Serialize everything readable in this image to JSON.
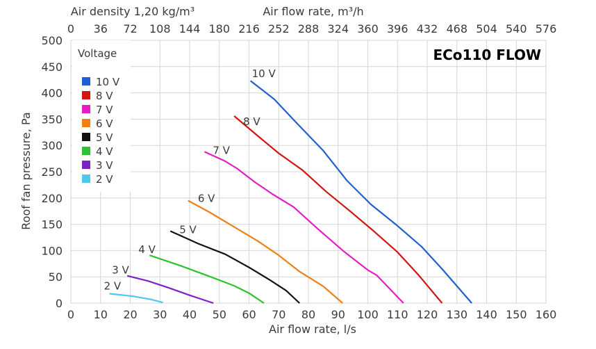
{
  "chart_data": {
    "type": "line",
    "title": "ECo110 FLOW",
    "xlabel": "Air flow rate, l/s",
    "ylabel": "Roof fan pressure, Pa",
    "x2label": "Air flow rate, m³/h",
    "x3label": "Air density 1,20 kg/m³",
    "xlim": [
      0,
      160
    ],
    "ylim": [
      0,
      500
    ],
    "xticks": [
      0,
      10,
      20,
      30,
      40,
      50,
      60,
      70,
      80,
      90,
      100,
      110,
      120,
      130,
      140,
      150,
      160
    ],
    "yticks": [
      0,
      50,
      100,
      150,
      200,
      250,
      300,
      350,
      400,
      450,
      500
    ],
    "x2ticks": [
      0,
      36,
      72,
      108,
      144,
      180,
      216,
      252,
      288,
      324,
      360,
      396,
      432,
      468,
      504,
      540,
      576
    ],
    "grid": true,
    "legend": {
      "title": "Voltage",
      "position": "top-left"
    },
    "series": [
      {
        "name": "10 V",
        "label": "10 V",
        "color": "#1f5fd6",
        "points": [
          [
            60.5,
            423
          ],
          [
            68.5,
            388
          ],
          [
            76,
            343
          ],
          [
            85,
            290
          ],
          [
            93,
            233
          ],
          [
            101,
            188
          ],
          [
            110,
            147
          ],
          [
            118,
            108
          ],
          [
            125,
            65
          ],
          [
            135,
            0
          ]
        ]
      },
      {
        "name": "8 V",
        "label": "8 V",
        "color": "#d3150f",
        "points": [
          [
            55,
            356
          ],
          [
            63,
            318
          ],
          [
            70,
            285
          ],
          [
            78,
            253
          ],
          [
            86,
            212
          ],
          [
            94,
            175
          ],
          [
            102,
            137
          ],
          [
            110,
            97
          ],
          [
            117,
            54
          ],
          [
            125,
            0
          ]
        ]
      },
      {
        "name": "7 V",
        "label": "7 V",
        "color": "#e81cc6",
        "points": [
          [
            45,
            288
          ],
          [
            52,
            270
          ],
          [
            56,
            256
          ],
          [
            62,
            230
          ],
          [
            68,
            207
          ],
          [
            75,
            183
          ],
          [
            83,
            142
          ],
          [
            92,
            98
          ],
          [
            100,
            63
          ],
          [
            103,
            53
          ],
          [
            112,
            0
          ]
        ]
      },
      {
        "name": "6 V",
        "label": "6 V",
        "color": "#ef8014",
        "points": [
          [
            39.5,
            195
          ],
          [
            47,
            172
          ],
          [
            55,
            145
          ],
          [
            63,
            118
          ],
          [
            70,
            91
          ],
          [
            77,
            60
          ],
          [
            85,
            32
          ],
          [
            91.5,
            0
          ]
        ]
      },
      {
        "name": "5 V",
        "label": "5 V",
        "color": "#111111",
        "points": [
          [
            33.5,
            137
          ],
          [
            43,
            113
          ],
          [
            52,
            93
          ],
          [
            60,
            68
          ],
          [
            67,
            44
          ],
          [
            72.5,
            24
          ],
          [
            77,
            0
          ]
        ]
      },
      {
        "name": "4 V",
        "label": "4 V",
        "color": "#2ec22e",
        "points": [
          [
            26.5,
            91
          ],
          [
            37,
            71
          ],
          [
            48,
            48
          ],
          [
            55,
            33
          ],
          [
            60,
            19
          ],
          [
            65,
            0
          ]
        ]
      },
      {
        "name": "3 V",
        "label": "3 V",
        "color": "#7d22c9",
        "points": [
          [
            19,
            52
          ],
          [
            26,
            42
          ],
          [
            33,
            29
          ],
          [
            40,
            15
          ],
          [
            48,
            0
          ]
        ]
      },
      {
        "name": "2 V",
        "label": "2 V",
        "color": "#4ec8ee",
        "points": [
          [
            13,
            18
          ],
          [
            21,
            13
          ],
          [
            27,
            7
          ],
          [
            31,
            1
          ]
        ]
      }
    ]
  }
}
